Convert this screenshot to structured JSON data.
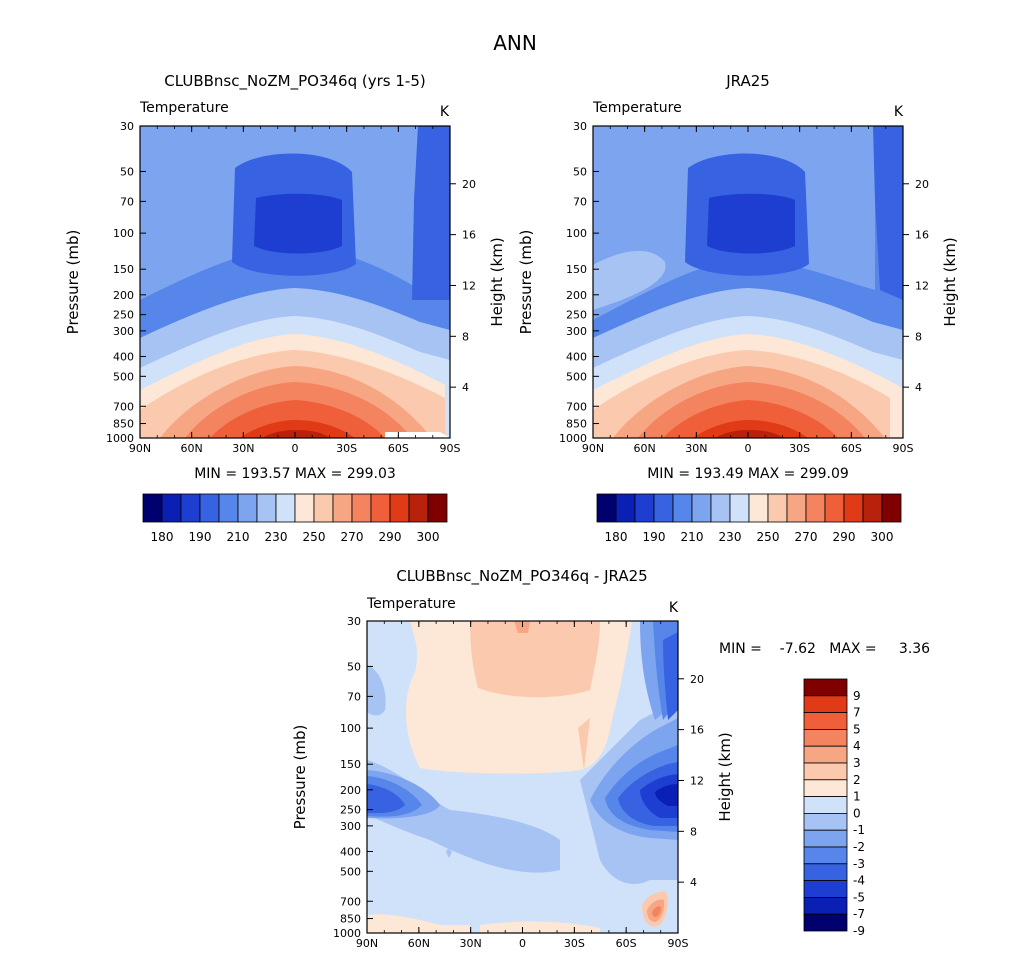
{
  "figure_title": "ANN",
  "colors": {
    "abs": [
      "#00006e",
      "#0a1fb4",
      "#1e3ed2",
      "#3762e1",
      "#5686ea",
      "#7da4ef",
      "#a6c3f4",
      "#d0e2fa",
      "#fde7d6",
      "#fbcaae",
      "#f7a684",
      "#f4835f",
      "#ef5f3a",
      "#e03a17",
      "#b8210c",
      "#800000"
    ],
    "diff": [
      "#00006e",
      "#0a1fb4",
      "#1e3ed2",
      "#3762e1",
      "#5686ea",
      "#7da4ef",
      "#a6c3f4",
      "#d0e2fa",
      "#fde7d6",
      "#fbcaae",
      "#f7a684",
      "#f4835f",
      "#ef5f3a",
      "#e03a17",
      "#800000"
    ]
  },
  "chart_data": [
    {
      "type": "contour",
      "title": "CLUBBnsc_NoZM_PO346q (yrs 1-5)",
      "left_label": "Temperature",
      "units_label": "K",
      "ylabel": "Pressure (mb)",
      "ylabel_right": "Height (km)",
      "x_ticks": [
        "90N",
        "60N",
        "30N",
        "0",
        "30S",
        "60S",
        "90S"
      ],
      "y_ticks": [
        "30",
        "50",
        "70",
        "100",
        "150",
        "200",
        "250",
        "300",
        "400",
        "500",
        "700",
        "850",
        "1000"
      ],
      "y_right_ticks": [
        "20",
        "16",
        "12",
        "8",
        "4"
      ],
      "stats": "MIN = 193.57   MAX = 299.03",
      "min": 193.57,
      "max": 299.03,
      "colorbar_labels": [
        "180",
        "190",
        "210",
        "230",
        "250",
        "270",
        "290",
        "300"
      ]
    },
    {
      "type": "contour",
      "title": "JRA25",
      "left_label": "Temperature",
      "units_label": "K",
      "ylabel": "Pressure (mb)",
      "ylabel_right": "Height (km)",
      "x_ticks": [
        "90N",
        "60N",
        "30N",
        "0",
        "30S",
        "60S",
        "90S"
      ],
      "y_ticks": [
        "30",
        "50",
        "70",
        "100",
        "150",
        "200",
        "250",
        "300",
        "400",
        "500",
        "700",
        "850",
        "1000"
      ],
      "y_right_ticks": [
        "20",
        "16",
        "12",
        "8",
        "4"
      ],
      "stats": "MIN = 193.49   MAX = 299.09",
      "min": 193.49,
      "max": 299.09,
      "colorbar_labels": [
        "180",
        "190",
        "210",
        "230",
        "250",
        "270",
        "290",
        "300"
      ]
    },
    {
      "type": "contour",
      "title": "CLUBBnsc_NoZM_PO346q - JRA25",
      "left_label": "Temperature",
      "units_label": "K",
      "ylabel": "Pressure (mb)",
      "ylabel_right": "Height (km)",
      "x_ticks": [
        "90N",
        "60N",
        "30N",
        "0",
        "30S",
        "60S",
        "90S"
      ],
      "y_ticks": [
        "30",
        "50",
        "70",
        "100",
        "150",
        "200",
        "250",
        "300",
        "400",
        "500",
        "700",
        "850",
        "1000"
      ],
      "y_right_ticks": [
        "20",
        "16",
        "12",
        "8",
        "4"
      ],
      "stats": "MIN =    -7.62   MAX =     3.36",
      "min": -7.62,
      "max": 3.36,
      "colorbar_labels": [
        "9",
        "7",
        "5",
        "4",
        "3",
        "2",
        "1",
        "0",
        "-1",
        "-2",
        "-3",
        "-4",
        "-5",
        "-7",
        "-9"
      ]
    }
  ]
}
